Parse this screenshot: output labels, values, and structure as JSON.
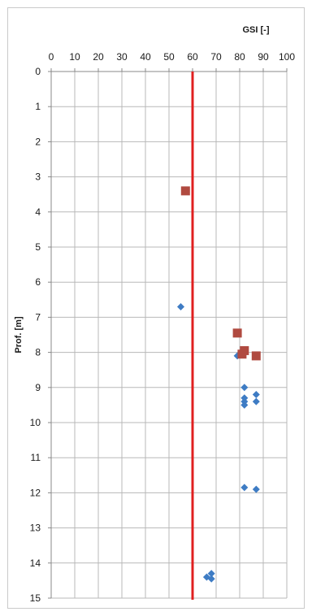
{
  "chart_data": {
    "type": "scatter",
    "xlabel": "GSI [-]",
    "ylabel": "Prof. [m]",
    "xlim": [
      0,
      100
    ],
    "ylim": [
      0,
      15
    ],
    "x_ticks": [
      "0",
      "10",
      "20",
      "30",
      "40",
      "50",
      "60",
      "70",
      "80",
      "90",
      "100"
    ],
    "y_ticks": [
      "0",
      "1",
      "2",
      "3",
      "4",
      "5",
      "6",
      "7",
      "8",
      "9",
      "10",
      "11",
      "12",
      "13",
      "14",
      "15"
    ],
    "x_axis_position": "top",
    "y_axis_reversed": true,
    "grid": true,
    "legend": false,
    "reference_line": {
      "x": 60,
      "color": "#e02020"
    },
    "series": [
      {
        "marker": "diamond",
        "color": "#3e7cc4",
        "points": [
          {
            "x": 55,
            "y": 6.7
          },
          {
            "x": 79,
            "y": 8.1
          },
          {
            "x": 82,
            "y": 9.0
          },
          {
            "x": 87,
            "y": 9.2
          },
          {
            "x": 82,
            "y": 9.3
          },
          {
            "x": 87,
            "y": 9.4
          },
          {
            "x": 82,
            "y": 9.4
          },
          {
            "x": 82,
            "y": 9.5
          },
          {
            "x": 82,
            "y": 11.85
          },
          {
            "x": 87,
            "y": 11.9
          },
          {
            "x": 68,
            "y": 14.3
          },
          {
            "x": 66,
            "y": 14.4
          },
          {
            "x": 68,
            "y": 14.45
          }
        ]
      },
      {
        "marker": "square",
        "color": "#b04a40",
        "points": [
          {
            "x": 57,
            "y": 3.4
          },
          {
            "x": 79,
            "y": 7.45
          },
          {
            "x": 82,
            "y": 7.95
          },
          {
            "x": 81,
            "y": 8.05
          },
          {
            "x": 87,
            "y": 8.1
          }
        ]
      }
    ]
  }
}
